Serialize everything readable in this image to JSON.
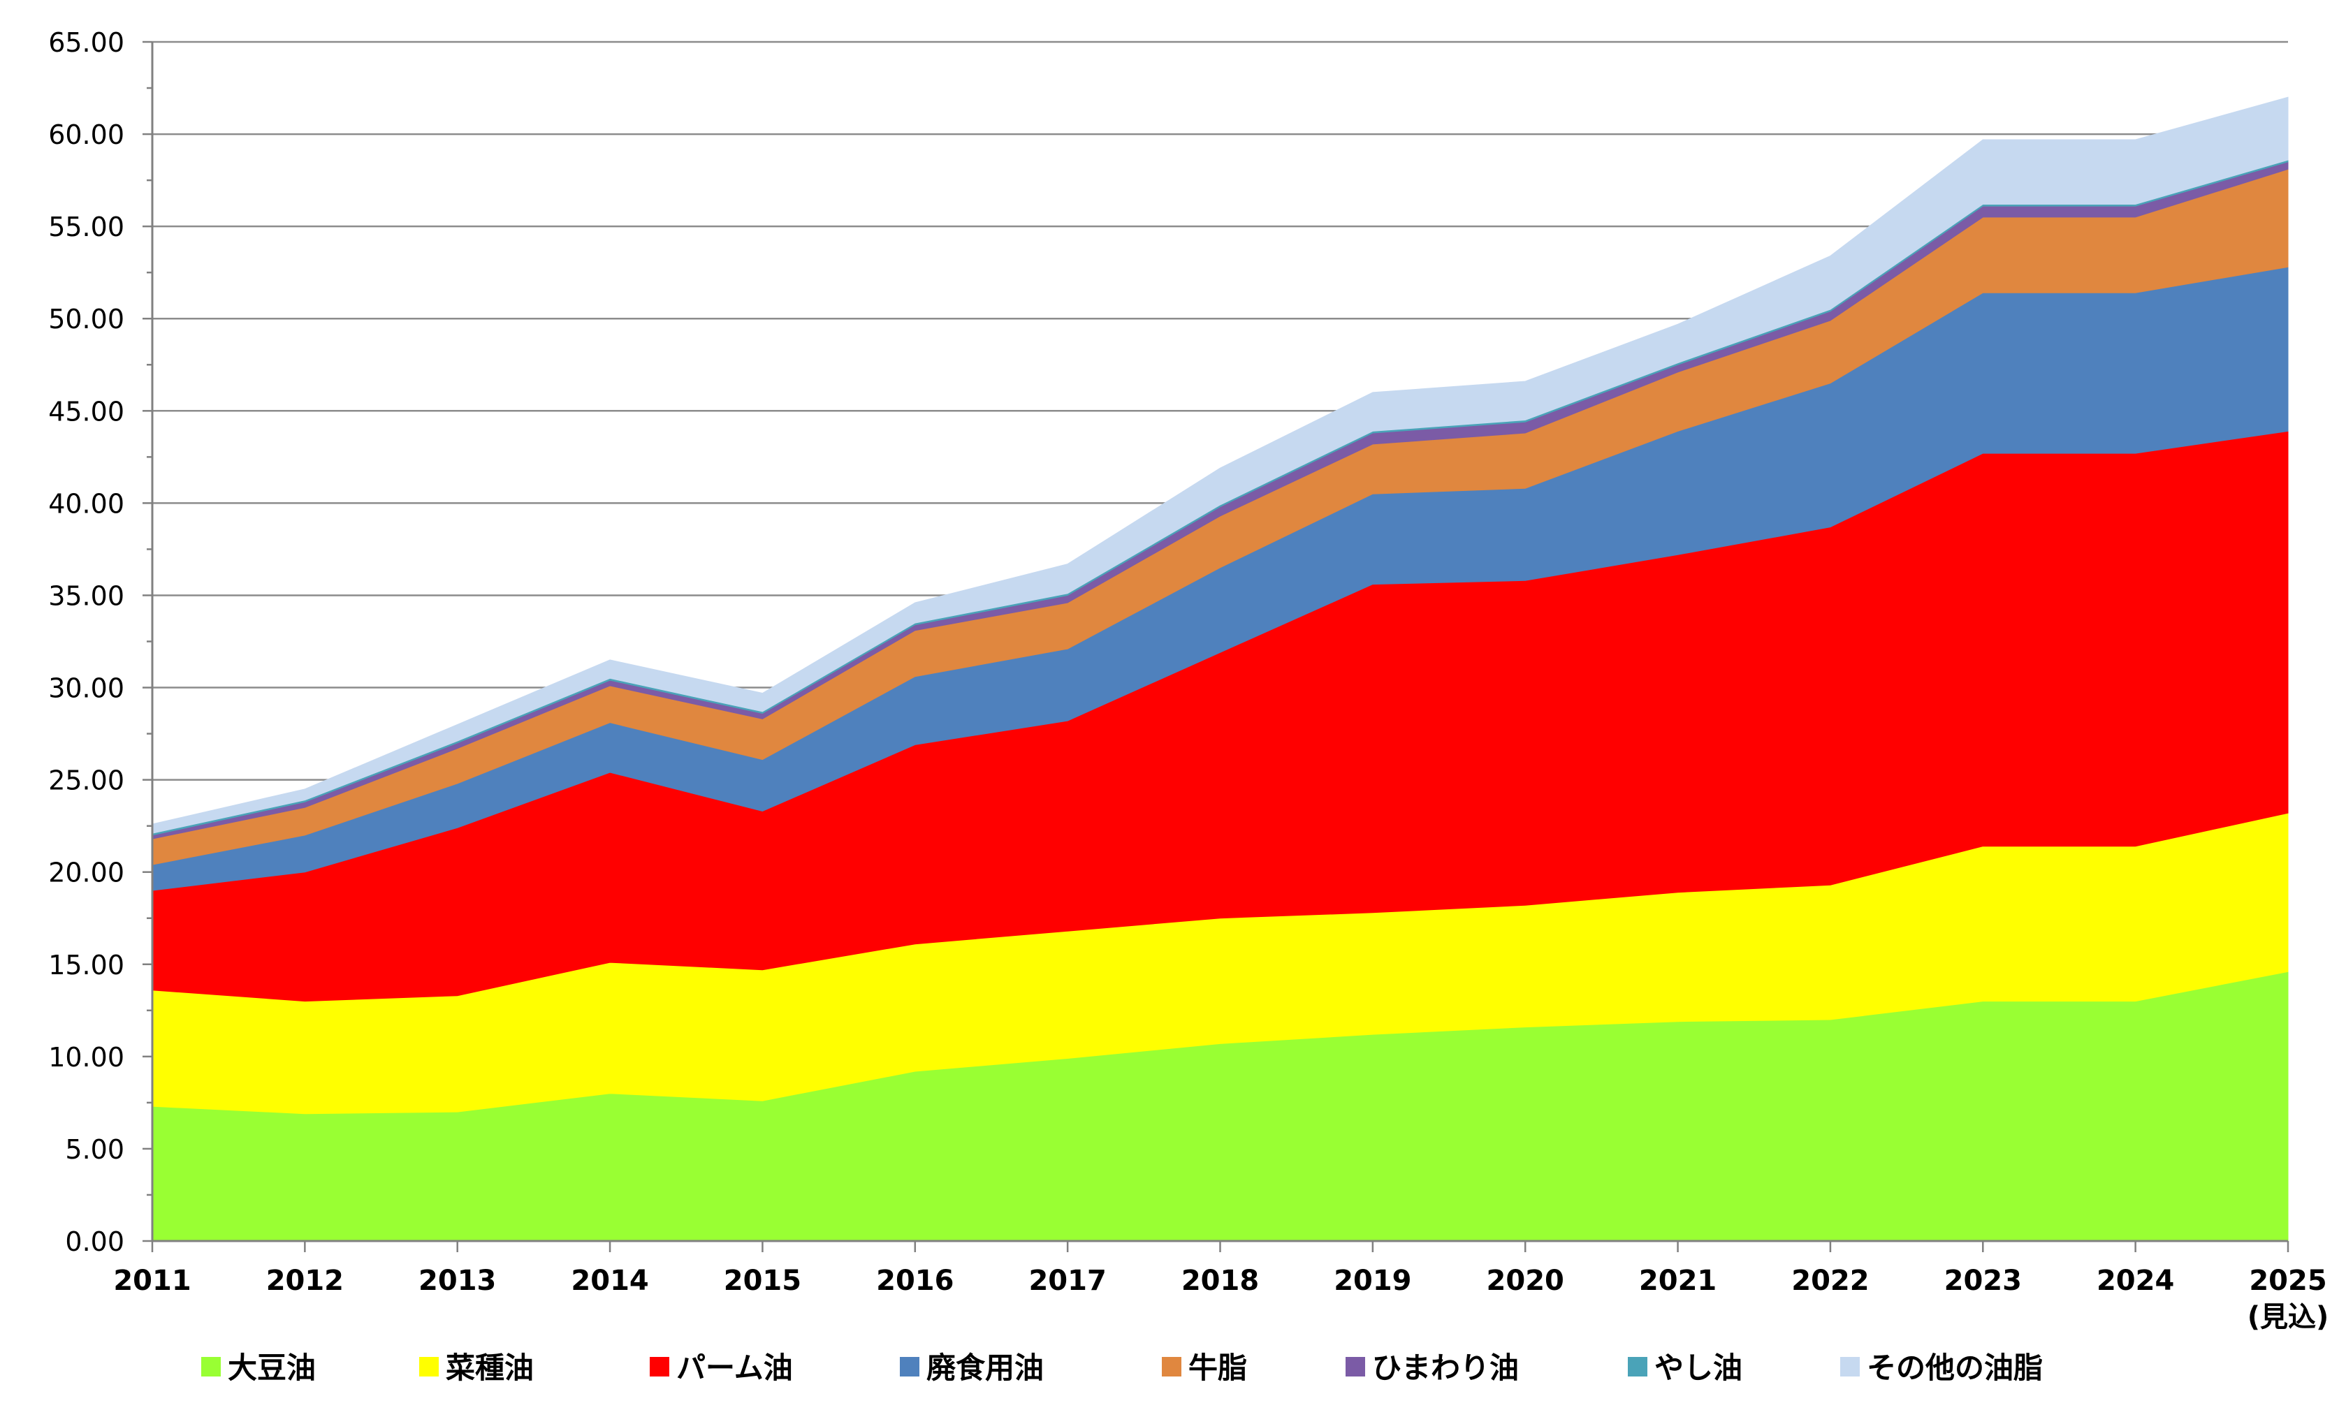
{
  "chart_data": {
    "type": "area",
    "stacked": true,
    "title": "",
    "xlabel": "",
    "ylabel": "",
    "ylim": [
      0,
      65
    ],
    "y_ticks": [
      "0.00",
      "5.00",
      "10.00",
      "15.00",
      "20.00",
      "25.00",
      "30.00",
      "35.00",
      "40.00",
      "45.00",
      "50.00",
      "55.00",
      "60.00",
      "65.00"
    ],
    "grid": "horizontal",
    "legend_position": "bottom",
    "categories": [
      "2011",
      "2012",
      "2013",
      "2014",
      "2015",
      "2016",
      "2017",
      "2018",
      "2019",
      "2020",
      "2021",
      "2022",
      "2023",
      "2024",
      "2025"
    ],
    "category_sublabels": [
      "",
      "",
      "",
      "",
      "",
      "",
      "",
      "",
      "",
      "",
      "",
      "",
      "",
      "",
      "(見込)"
    ],
    "series": [
      {
        "name": "大豆油",
        "color": "#99ff33",
        "values": [
          7.3,
          6.9,
          7.0,
          8.0,
          7.6,
          9.2,
          9.9,
          10.7,
          11.2,
          11.6,
          11.9,
          12.0,
          13.0,
          13.0,
          14.6
        ]
      },
      {
        "name": "菜種油",
        "color": "#ffff00",
        "values": [
          6.3,
          6.1,
          6.3,
          7.1,
          7.1,
          6.9,
          6.9,
          6.8,
          6.6,
          6.6,
          7.0,
          7.3,
          8.4,
          8.4,
          8.6
        ]
      },
      {
        "name": "パーム油",
        "color": "#ff0000",
        "values": [
          5.4,
          7.0,
          9.1,
          10.3,
          8.6,
          10.8,
          11.4,
          14.4,
          17.8,
          17.6,
          18.3,
          19.4,
          21.3,
          21.3,
          20.7
        ]
      },
      {
        "name": "廃食用油",
        "color": "#4f81bd",
        "values": [
          1.4,
          2.0,
          2.4,
          2.7,
          2.8,
          3.7,
          3.9,
          4.6,
          4.9,
          5.0,
          6.7,
          7.8,
          8.7,
          8.7,
          8.9
        ]
      },
      {
        "name": "牛脂",
        "color": "#e0873f",
        "values": [
          1.4,
          1.5,
          1.9,
          2.0,
          2.2,
          2.5,
          2.5,
          2.8,
          2.7,
          3.0,
          3.2,
          3.4,
          4.1,
          4.1,
          5.3
        ]
      },
      {
        "name": "ひまわり油",
        "color": "#7b5ba6",
        "values": [
          0.2,
          0.3,
          0.3,
          0.3,
          0.3,
          0.3,
          0.4,
          0.5,
          0.6,
          0.6,
          0.4,
          0.5,
          0.6,
          0.6,
          0.4
        ]
      },
      {
        "name": "やし油",
        "color": "#4aa3b8",
        "values": [
          0.1,
          0.1,
          0.1,
          0.1,
          0.1,
          0.1,
          0.1,
          0.1,
          0.1,
          0.1,
          0.1,
          0.1,
          0.1,
          0.1,
          0.1
        ]
      },
      {
        "name": "その他の油脂",
        "color": "#c6d9f0",
        "values": [
          0.5,
          0.6,
          0.9,
          1.0,
          1.0,
          1.1,
          1.6,
          2.0,
          2.1,
          2.1,
          2.1,
          2.9,
          3.5,
          3.5,
          3.4
        ]
      }
    ]
  }
}
